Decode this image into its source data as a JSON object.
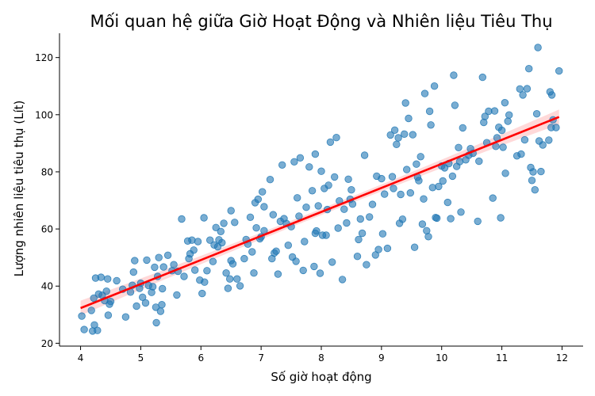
{
  "chart_data": {
    "type": "scatter",
    "title": "Mối quan hệ giữa Giờ Hoạt Động và Nhiên liệu Tiêu Thụ",
    "xlabel": "Số giờ hoạt động",
    "ylabel": "Lượng nhiên liệu tiêu thụ (Lít)",
    "xlim": [
      3.65,
      12.35
    ],
    "ylim": [
      19,
      128.5
    ],
    "xticks": [
      4,
      5,
      6,
      7,
      8,
      9,
      10,
      11,
      12
    ],
    "yticks": [
      20,
      40,
      60,
      80,
      100,
      120
    ],
    "grid": false,
    "colors": {
      "points": "#1f77b4",
      "regression": "#ff0000",
      "confidence_band": "#ff0000"
    },
    "regression": {
      "x_start": 4.0,
      "x_end": 11.95,
      "y_start": 32.3,
      "y_end": 99.2,
      "ci_halfwidth_ends": 2.6,
      "ci_halfwidth_center": 1.1
    },
    "points": [
      [
        4.02,
        29.5
      ],
      [
        4.06,
        24.8
      ],
      [
        4.18,
        31.5
      ],
      [
        4.2,
        24.3
      ],
      [
        4.23,
        26.4
      ],
      [
        4.22,
        35.8
      ],
      [
        4.25,
        42.8
      ],
      [
        4.28,
        24.5
      ],
      [
        4.3,
        37.2
      ],
      [
        4.34,
        43.1
      ],
      [
        4.36,
        36.8
      ],
      [
        4.4,
        34.9
      ],
      [
        4.43,
        38.2
      ],
      [
        4.45,
        42.5
      ],
      [
        4.46,
        29.8
      ],
      [
        4.48,
        33.7
      ],
      [
        4.5,
        34.6
      ],
      [
        4.6,
        41.9
      ],
      [
        4.7,
        38.9
      ],
      [
        4.75,
        29.2
      ],
      [
        4.83,
        37.9
      ],
      [
        4.86,
        40.3
      ],
      [
        4.88,
        44.9
      ],
      [
        4.9,
        48.9
      ],
      [
        4.93,
        33
      ],
      [
        4.98,
        39.2
      ],
      [
        5.0,
        41
      ],
      [
        5.03,
        36.1
      ],
      [
        5.08,
        34.1
      ],
      [
        5.1,
        49.1
      ],
      [
        5.13,
        40.2
      ],
      [
        5.18,
        37.8
      ],
      [
        5.2,
        39.8
      ],
      [
        5.23,
        46.6
      ],
      [
        5.25,
        32.6
      ],
      [
        5.26,
        27.2
      ],
      [
        5.28,
        43.4
      ],
      [
        5.3,
        50
      ],
      [
        5.33,
        31.2
      ],
      [
        5.35,
        33.5
      ],
      [
        5.36,
        39.1
      ],
      [
        5.38,
        46.7
      ],
      [
        5.45,
        50.8
      ],
      [
        5.52,
        45.4
      ],
      [
        5.55,
        47.5
      ],
      [
        5.6,
        36.9
      ],
      [
        5.62,
        45.2
      ],
      [
        5.68,
        63.5
      ],
      [
        5.72,
        43.4
      ],
      [
        5.78,
        55.8
      ],
      [
        5.8,
        49.6
      ],
      [
        5.82,
        51.3
      ],
      [
        5.85,
        56.1
      ],
      [
        5.88,
        52.6
      ],
      [
        5.9,
        45.6
      ],
      [
        5.95,
        55.6
      ],
      [
        5.98,
        42.1
      ],
      [
        6.02,
        37.4
      ],
      [
        6.05,
        63.9
      ],
      [
        6.06,
        41.4
      ],
      [
        6.1,
        45.4
      ],
      [
        6.15,
        56.1
      ],
      [
        6.2,
        48.6
      ],
      [
        6.22,
        54.4
      ],
      [
        6.25,
        60.5
      ],
      [
        6.28,
        53.8
      ],
      [
        6.3,
        56.2
      ],
      [
        6.33,
        59.1
      ],
      [
        6.35,
        55.2
      ],
      [
        6.38,
        62
      ],
      [
        6.42,
        44.6
      ],
      [
        6.45,
        39.2
      ],
      [
        6.48,
        42.5
      ],
      [
        6.5,
        48.9
      ],
      [
        6.5,
        66.4
      ],
      [
        6.53,
        47.8
      ],
      [
        6.56,
        62.3
      ],
      [
        6.6,
        42.5
      ],
      [
        6.65,
        40.1
      ],
      [
        6.72,
        49.6
      ],
      [
        6.75,
        56.3
      ],
      [
        6.78,
        54.7
      ],
      [
        6.82,
        64.1
      ],
      [
        6.85,
        52
      ],
      [
        6.88,
        44.6
      ],
      [
        6.9,
        69.2
      ],
      [
        6.92,
        60.4
      ],
      [
        6.95,
        70.4
      ],
      [
        6.98,
        56.6
      ],
      [
        7.0,
        57.2
      ],
      [
        7.02,
        73
      ],
      [
        7.05,
        67.8
      ],
      [
        7.05,
        59.4
      ],
      [
        7.15,
        77.3
      ],
      [
        7.18,
        49.6
      ],
      [
        7.2,
        65
      ],
      [
        7.22,
        51.6
      ],
      [
        7.25,
        52.2
      ],
      [
        7.28,
        44.2
      ],
      [
        7.32,
        62.7
      ],
      [
        7.35,
        82.4
      ],
      [
        7.38,
        63.6
      ],
      [
        7.42,
        61.9
      ],
      [
        7.45,
        54.3
      ],
      [
        7.5,
        60.8
      ],
      [
        7.52,
        50.2
      ],
      [
        7.55,
        83.5
      ],
      [
        7.58,
        48.7
      ],
      [
        7.6,
        70.9
      ],
      [
        7.63,
        64.5
      ],
      [
        7.65,
        84.9
      ],
      [
        7.7,
        45.5
      ],
      [
        7.72,
        55.6
      ],
      [
        7.75,
        67.6
      ],
      [
        7.8,
        81.7
      ],
      [
        7.85,
        73.4
      ],
      [
        7.88,
        46.9
      ],
      [
        7.9,
        58.5
      ],
      [
        7.9,
        86.2
      ],
      [
        7.92,
        59.3
      ],
      [
        7.95,
        68.1
      ],
      [
        7.98,
        44.5
      ],
      [
        8.0,
        80.2
      ],
      [
        8.02,
        57.8
      ],
      [
        8.05,
        74.2
      ],
      [
        8.08,
        57.8
      ],
      [
        8.1,
        66.8
      ],
      [
        8.12,
        75.3
      ],
      [
        8.15,
        90.4
      ],
      [
        8.18,
        48.4
      ],
      [
        8.22,
        78.2
      ],
      [
        8.25,
        92
      ],
      [
        8.28,
        60.3
      ],
      [
        8.3,
        69.8
      ],
      [
        8.35,
        42.3
      ],
      [
        8.38,
        66.9
      ],
      [
        8.42,
        62.1
      ],
      [
        8.45,
        77.4
      ],
      [
        8.48,
        70.4
      ],
      [
        8.5,
        73.7
      ],
      [
        8.52,
        68.7
      ],
      [
        8.6,
        50.4
      ],
      [
        8.62,
        56.3
      ],
      [
        8.65,
        63.5
      ],
      [
        8.68,
        58.5
      ],
      [
        8.72,
        85.8
      ],
      [
        8.75,
        47.5
      ],
      [
        8.8,
        64.2
      ],
      [
        8.85,
        68.6
      ],
      [
        8.9,
        50.9
      ],
      [
        8.92,
        78.5
      ],
      [
        8.95,
        52.8
      ],
      [
        9.0,
        77.6
      ],
      [
        9.02,
        58.3
      ],
      [
        9.05,
        72.2
      ],
      [
        9.1,
        53.2
      ],
      [
        9.15,
        92.9
      ],
      [
        9.18,
        78.3
      ],
      [
        9.2,
        74.2
      ],
      [
        9.22,
        94.6
      ],
      [
        9.25,
        89.6
      ],
      [
        9.28,
        91.9
      ],
      [
        9.3,
        62
      ],
      [
        9.32,
        72.1
      ],
      [
        9.35,
        63.4
      ],
      [
        9.38,
        93.2
      ],
      [
        9.4,
        104.1
      ],
      [
        9.42,
        80.8
      ],
      [
        9.45,
        98.7
      ],
      [
        9.48,
        72.6
      ],
      [
        9.52,
        93
      ],
      [
        9.55,
        53.6
      ],
      [
        9.58,
        82.7
      ],
      [
        9.6,
        78.1
      ],
      [
        9.62,
        76.9
      ],
      [
        9.65,
        85.3
      ],
      [
        9.68,
        61.7
      ],
      [
        9.7,
        70.5
      ],
      [
        9.72,
        107.4
      ],
      [
        9.75,
        59.4
      ],
      [
        9.78,
        57.3
      ],
      [
        9.8,
        101.2
      ],
      [
        9.82,
        96.4
      ],
      [
        9.85,
        74.5
      ],
      [
        9.88,
        110
      ],
      [
        9.9,
        64
      ],
      [
        9.92,
        63.8
      ],
      [
        9.95,
        74.9
      ],
      [
        10.0,
        82
      ],
      [
        10.02,
        76.8
      ],
      [
        10.05,
        81.4
      ],
      [
        10.1,
        69.3
      ],
      [
        10.12,
        82.9
      ],
      [
        10.15,
        63.6
      ],
      [
        10.18,
        78.5
      ],
      [
        10.2,
        113.8
      ],
      [
        10.22,
        103.3
      ],
      [
        10.25,
        81.9
      ],
      [
        10.28,
        88.5
      ],
      [
        10.3,
        83.6
      ],
      [
        10.32,
        65.9
      ],
      [
        10.35,
        95.4
      ],
      [
        10.4,
        84.2
      ],
      [
        10.45,
        85.8
      ],
      [
        10.48,
        88.1
      ],
      [
        10.52,
        86.5
      ],
      [
        10.6,
        62.7
      ],
      [
        10.62,
        83.7
      ],
      [
        10.68,
        113.1
      ],
      [
        10.7,
        97.3
      ],
      [
        10.72,
        99.4
      ],
      [
        10.75,
        90.2
      ],
      [
        10.78,
        101.2
      ],
      [
        10.85,
        70.8
      ],
      [
        10.88,
        101.3
      ],
      [
        10.9,
        88.9
      ],
      [
        10.92,
        91.9
      ],
      [
        10.95,
        95.6
      ],
      [
        10.98,
        63.9
      ],
      [
        11.0,
        94.5
      ],
      [
        11.02,
        88.6
      ],
      [
        11.05,
        104.2
      ],
      [
        11.06,
        79.5
      ],
      [
        11.1,
        97.7
      ],
      [
        11.12,
        99.9
      ],
      [
        11.25,
        85.6
      ],
      [
        11.3,
        109
      ],
      [
        11.32,
        86.2
      ],
      [
        11.35,
        106.9
      ],
      [
        11.38,
        91.2
      ],
      [
        11.42,
        109.1
      ],
      [
        11.45,
        116.1
      ],
      [
        11.48,
        81.5
      ],
      [
        11.5,
        77
      ],
      [
        11.52,
        80
      ],
      [
        11.55,
        73.7
      ],
      [
        11.58,
        100.3
      ],
      [
        11.6,
        123.5
      ],
      [
        11.62,
        90.8
      ],
      [
        11.65,
        80.1
      ],
      [
        11.68,
        89.4
      ],
      [
        11.78,
        91.1
      ],
      [
        11.8,
        108
      ],
      [
        11.82,
        95.5
      ],
      [
        11.83,
        106.9
      ],
      [
        11.85,
        98.2
      ],
      [
        11.9,
        95.5
      ],
      [
        11.95,
        115.3
      ]
    ]
  }
}
